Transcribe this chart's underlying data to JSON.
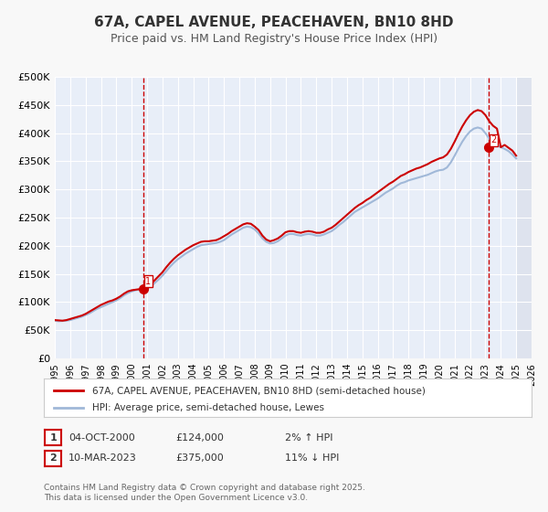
{
  "title": "67A, CAPEL AVENUE, PEACEHAVEN, BN10 8HD",
  "subtitle": "Price paid vs. HM Land Registry's House Price Index (HPI)",
  "xlabel": "",
  "ylabel": "",
  "ylim": [
    0,
    500000
  ],
  "xlim": [
    1995,
    2026
  ],
  "yticks": [
    0,
    50000,
    100000,
    150000,
    200000,
    250000,
    300000,
    350000,
    400000,
    450000,
    500000
  ],
  "ytick_labels": [
    "£0",
    "£50K",
    "£100K",
    "£150K",
    "£200K",
    "£250K",
    "£300K",
    "£350K",
    "£400K",
    "£450K",
    "£500K"
  ],
  "xticks": [
    1995,
    1996,
    1997,
    1998,
    1999,
    2000,
    2001,
    2002,
    2003,
    2004,
    2005,
    2006,
    2007,
    2008,
    2009,
    2010,
    2011,
    2012,
    2013,
    2014,
    2015,
    2016,
    2017,
    2018,
    2019,
    2020,
    2021,
    2022,
    2023,
    2024,
    2025,
    2026
  ],
  "bg_color": "#f0f4fa",
  "plot_bg_color": "#e8eef8",
  "grid_color": "#ffffff",
  "line_color_hpi": "#a0b8d8",
  "line_color_property": "#cc0000",
  "marker_color": "#cc0000",
  "sale1_x": 2000.75,
  "sale1_y": 124000,
  "sale1_label": "1",
  "sale2_x": 2023.19,
  "sale2_y": 375000,
  "sale2_label": "2",
  "vline1_x": 2000.75,
  "vline2_x": 2023.19,
  "vline_color": "#cc0000",
  "legend_label1": "67A, CAPEL AVENUE, PEACEHAVEN, BN10 8HD (semi-detached house)",
  "legend_label2": "HPI: Average price, semi-detached house, Lewes",
  "annotation1_num": "1",
  "annotation1_date": "04-OCT-2000",
  "annotation1_price": "£124,000",
  "annotation1_hpi": "2% ↑ HPI",
  "annotation2_num": "2",
  "annotation2_date": "10-MAR-2023",
  "annotation2_price": "£375,000",
  "annotation2_hpi": "11% ↓ HPI",
  "footer": "Contains HM Land Registry data © Crown copyright and database right 2025.\nThis data is licensed under the Open Government Licence v3.0.",
  "hpi_data_x": [
    1995.0,
    1995.25,
    1995.5,
    1995.75,
    1996.0,
    1996.25,
    1996.5,
    1996.75,
    1997.0,
    1997.25,
    1997.5,
    1997.75,
    1998.0,
    1998.25,
    1998.5,
    1998.75,
    1999.0,
    1999.25,
    1999.5,
    1999.75,
    2000.0,
    2000.25,
    2000.5,
    2000.75,
    2001.0,
    2001.25,
    2001.5,
    2001.75,
    2002.0,
    2002.25,
    2002.5,
    2002.75,
    2003.0,
    2003.25,
    2003.5,
    2003.75,
    2004.0,
    2004.25,
    2004.5,
    2004.75,
    2005.0,
    2005.25,
    2005.5,
    2005.75,
    2006.0,
    2006.25,
    2006.5,
    2006.75,
    2007.0,
    2007.25,
    2007.5,
    2007.75,
    2008.0,
    2008.25,
    2008.5,
    2008.75,
    2009.0,
    2009.25,
    2009.5,
    2009.75,
    2010.0,
    2010.25,
    2010.5,
    2010.75,
    2011.0,
    2011.25,
    2011.5,
    2011.75,
    2012.0,
    2012.25,
    2012.5,
    2012.75,
    2013.0,
    2013.25,
    2013.5,
    2013.75,
    2014.0,
    2014.25,
    2014.5,
    2014.75,
    2015.0,
    2015.25,
    2015.5,
    2015.75,
    2016.0,
    2016.25,
    2016.5,
    2016.75,
    2017.0,
    2017.25,
    2017.5,
    2017.75,
    2018.0,
    2018.25,
    2018.5,
    2018.75,
    2019.0,
    2019.25,
    2019.5,
    2019.75,
    2020.0,
    2020.25,
    2020.5,
    2020.75,
    2021.0,
    2021.25,
    2021.5,
    2021.75,
    2022.0,
    2022.25,
    2022.5,
    2022.75,
    2023.0,
    2023.25,
    2023.5,
    2023.75,
    2024.0,
    2024.25,
    2024.5,
    2024.75,
    2025.0
  ],
  "hpi_data_y": [
    67000,
    66000,
    66500,
    67000,
    68000,
    70000,
    72000,
    74000,
    77000,
    80000,
    84000,
    88000,
    91000,
    94000,
    97000,
    100000,
    103000,
    107000,
    112000,
    116000,
    119000,
    121000,
    122000,
    122500,
    124000,
    128000,
    134000,
    140000,
    147000,
    155000,
    163000,
    170000,
    176000,
    181000,
    186000,
    190000,
    194000,
    198000,
    201000,
    202000,
    203000,
    204000,
    205000,
    207000,
    210000,
    215000,
    220000,
    224000,
    228000,
    232000,
    234000,
    233000,
    229000,
    222000,
    213000,
    207000,
    204000,
    205000,
    208000,
    213000,
    218000,
    221000,
    221000,
    219000,
    218000,
    220000,
    221000,
    220000,
    218000,
    218000,
    220000,
    223000,
    226000,
    231000,
    237000,
    242000,
    248000,
    254000,
    260000,
    264000,
    268000,
    272000,
    276000,
    280000,
    284000,
    289000,
    294000,
    298000,
    302000,
    307000,
    311000,
    313000,
    316000,
    318000,
    320000,
    322000,
    324000,
    326000,
    329000,
    332000,
    334000,
    335000,
    339000,
    348000,
    360000,
    373000,
    385000,
    395000,
    403000,
    408000,
    410000,
    408000,
    400000,
    390000,
    382000,
    378000,
    375000,
    372000,
    368000,
    362000,
    355000
  ],
  "property_data_x": [
    1995.0,
    1995.25,
    1995.5,
    1995.75,
    1996.0,
    1996.25,
    1996.5,
    1996.75,
    1997.0,
    1997.25,
    1997.5,
    1997.75,
    1998.0,
    1998.25,
    1998.5,
    1998.75,
    1999.0,
    1999.25,
    1999.5,
    1999.75,
    2000.0,
    2000.25,
    2000.5,
    2000.75,
    2001.0,
    2001.25,
    2001.5,
    2001.75,
    2002.0,
    2002.25,
    2002.5,
    2002.75,
    2003.0,
    2003.25,
    2003.5,
    2003.75,
    2004.0,
    2004.25,
    2004.5,
    2004.75,
    2005.0,
    2005.25,
    2005.5,
    2005.75,
    2006.0,
    2006.25,
    2006.5,
    2006.75,
    2007.0,
    2007.25,
    2007.5,
    2007.75,
    2008.0,
    2008.25,
    2008.5,
    2008.75,
    2009.0,
    2009.25,
    2009.5,
    2009.75,
    2010.0,
    2010.25,
    2010.5,
    2010.75,
    2011.0,
    2011.25,
    2011.5,
    2011.75,
    2012.0,
    2012.25,
    2012.5,
    2012.75,
    2013.0,
    2013.25,
    2013.5,
    2013.75,
    2014.0,
    2014.25,
    2014.5,
    2014.75,
    2015.0,
    2015.25,
    2015.5,
    2015.75,
    2016.0,
    2016.25,
    2016.5,
    2016.75,
    2017.0,
    2017.25,
    2017.5,
    2017.75,
    2018.0,
    2018.25,
    2018.5,
    2018.75,
    2019.0,
    2019.25,
    2019.5,
    2019.75,
    2020.0,
    2020.25,
    2020.5,
    2020.75,
    2021.0,
    2021.25,
    2021.5,
    2021.75,
    2022.0,
    2022.25,
    2022.5,
    2022.75,
    2023.0,
    2023.25,
    2023.5,
    2023.75,
    2024.0,
    2024.25,
    2024.5,
    2024.75,
    2025.0
  ],
  "property_data_y": [
    68000,
    67500,
    67000,
    68000,
    70000,
    72000,
    74000,
    76000,
    79000,
    83000,
    87000,
    91000,
    95000,
    98000,
    101000,
    103000,
    106000,
    110000,
    115000,
    119000,
    121000,
    122000,
    123000,
    124000,
    126000,
    132000,
    139000,
    146000,
    153000,
    162000,
    170000,
    177000,
    183000,
    188000,
    193000,
    197000,
    201000,
    204000,
    207000,
    208000,
    208000,
    209000,
    210000,
    213000,
    217000,
    221000,
    226000,
    230000,
    234000,
    238000,
    240000,
    239000,
    234000,
    228000,
    218000,
    211000,
    208000,
    210000,
    213000,
    218000,
    224000,
    226000,
    226000,
    224000,
    223000,
    225000,
    226000,
    225000,
    223000,
    223000,
    225000,
    229000,
    232000,
    237000,
    243000,
    249000,
    255000,
    261000,
    267000,
    272000,
    276000,
    281000,
    285000,
    290000,
    295000,
    300000,
    305000,
    310000,
    314000,
    319000,
    324000,
    327000,
    331000,
    334000,
    337000,
    339000,
    342000,
    345000,
    349000,
    352000,
    355000,
    357000,
    362000,
    372000,
    385000,
    399000,
    412000,
    423000,
    432000,
    438000,
    441000,
    439000,
    432000,
    421000,
    413000,
    408000,
    375000,
    379000,
    374000,
    369000,
    360000
  ]
}
